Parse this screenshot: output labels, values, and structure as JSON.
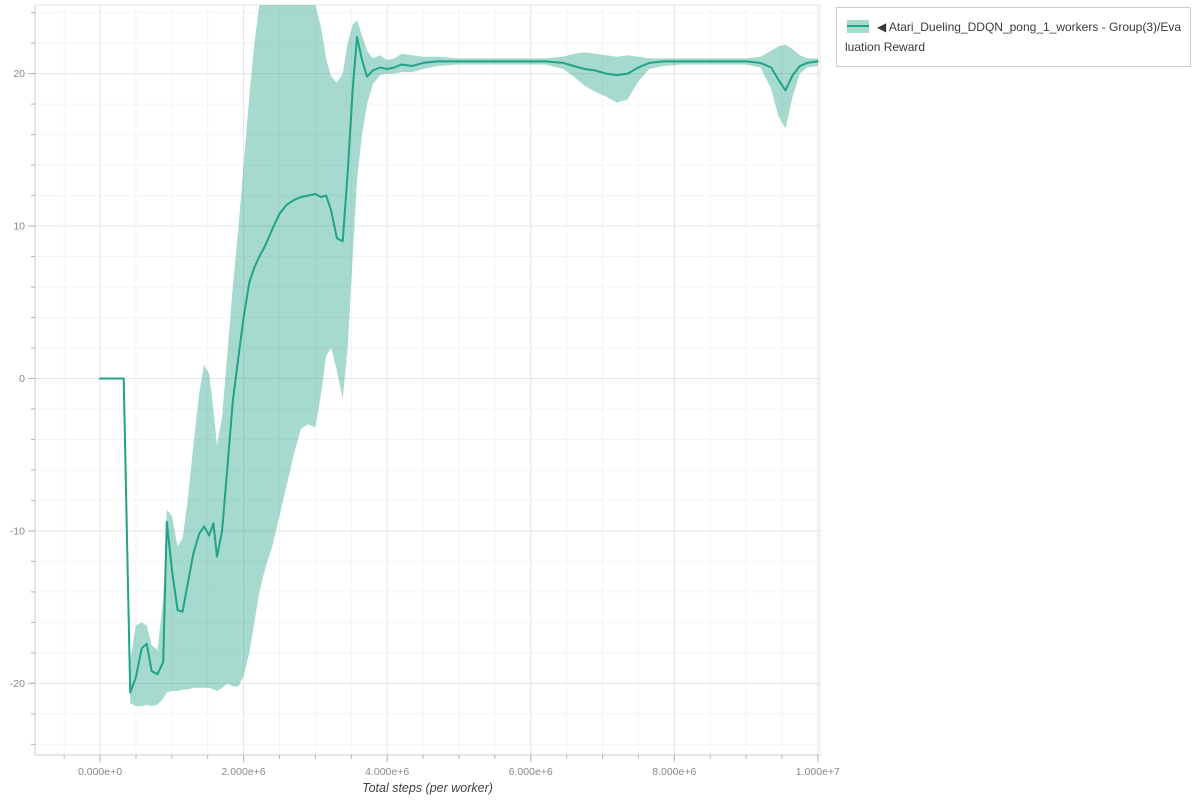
{
  "page": {
    "background": "#ffffff"
  },
  "legend": {
    "position": "top-right",
    "items": [
      {
        "label": "◀ Atari_Dueling_DDQN_pong_1_workers - Group(3)/Evaluation Reward",
        "line_color": "#20a387",
        "band_color": "#a8dbcd"
      }
    ]
  },
  "chart_data": {
    "type": "line",
    "title": "",
    "xlabel": "Total steps (per worker)",
    "ylabel": "",
    "legend_position": "top-right-outside",
    "xlim": [
      -906000,
      10030000
    ],
    "ylim": [
      -24.7,
      24.5
    ],
    "x_ticks": {
      "values": [
        0,
        2000000,
        4000000,
        6000000,
        8000000,
        10000000
      ],
      "labels": [
        "0.000e+0",
        "2.000e+6",
        "4.000e+6",
        "6.000e+6",
        "8.000e+6",
        "1.000e+7"
      ]
    },
    "y_ticks": {
      "values": [
        -20,
        -10,
        0,
        10,
        20
      ],
      "labels": [
        "-20",
        "-10",
        "0",
        "10",
        "20"
      ]
    },
    "grid": {
      "on": true,
      "x_minor_step": 500000,
      "y_minor_step": 2,
      "major_color": "#e5e5e5",
      "minor_color": "#f4f4f4",
      "outline_color": "#e5e5e5",
      "axis_line_color": "#cccccc",
      "tick_color": "#b5b5b5",
      "tick_label_color": "#898989"
    },
    "series": [
      {
        "name": "Atari_Dueling_DDQN_pong_1_workers - Group(3)/Evaluation Reward",
        "color": "#20a387",
        "band_fill": "rgba(32,163,135,0.40)",
        "x": [
          0,
          150000,
          300000,
          330000,
          420000,
          500000,
          580000,
          650000,
          720000,
          800000,
          880000,
          930000,
          1000000,
          1080000,
          1150000,
          1220000,
          1300000,
          1380000,
          1450000,
          1520000,
          1580000,
          1630000,
          1700000,
          1780000,
          1850000,
          1930000,
          2000000,
          2080000,
          2150000,
          2220000,
          2300000,
          2400000,
          2500000,
          2600000,
          2700000,
          2800000,
          2900000,
          3000000,
          3080000,
          3150000,
          3220000,
          3300000,
          3380000,
          3450000,
          3520000,
          3580000,
          3650000,
          3720000,
          3800000,
          3900000,
          4000000,
          4100000,
          4200000,
          4350000,
          4500000,
          4700000,
          5000000,
          5300000,
          5600000,
          5900000,
          6200000,
          6450000,
          6600000,
          6750000,
          6900000,
          7050000,
          7200000,
          7350000,
          7500000,
          7650000,
          7850000,
          8100000,
          8400000,
          8700000,
          9000000,
          9200000,
          9350000,
          9450000,
          9550000,
          9650000,
          9750000,
          9850000,
          10000000
        ],
        "mean": [
          0,
          0,
          0,
          0,
          -20.6,
          -19.6,
          -17.7,
          -17.4,
          -19.2,
          -19.4,
          -18.6,
          -9.4,
          -12.5,
          -15.2,
          -15.3,
          -13.5,
          -11.5,
          -10.2,
          -9.7,
          -10.3,
          -9.5,
          -11.7,
          -10.0,
          -5.5,
          -1.5,
          1.5,
          4.0,
          6.3,
          7.3,
          8.0,
          8.7,
          9.8,
          10.8,
          11.4,
          11.7,
          11.9,
          12.0,
          12.1,
          11.9,
          12.0,
          11.0,
          9.2,
          9.0,
          13.5,
          19.0,
          22.4,
          20.9,
          19.8,
          20.2,
          20.4,
          20.3,
          20.4,
          20.6,
          20.5,
          20.7,
          20.8,
          20.8,
          20.8,
          20.8,
          20.8,
          20.8,
          20.7,
          20.5,
          20.3,
          20.2,
          20.0,
          19.9,
          20.0,
          20.4,
          20.7,
          20.8,
          20.8,
          20.8,
          20.8,
          20.8,
          20.7,
          20.4,
          19.6,
          18.9,
          19.9,
          20.5,
          20.7,
          20.8
        ],
        "lower": [
          0,
          0,
          0,
          0,
          -21.3,
          -21.5,
          -21.5,
          -21.4,
          -21.5,
          -21.4,
          -21.0,
          -20.6,
          -20.5,
          -20.5,
          -20.4,
          -20.4,
          -20.3,
          -20.3,
          -20.3,
          -20.3,
          -20.4,
          -20.5,
          -20.3,
          -20.0,
          -20.2,
          -20.2,
          -19.5,
          -18.0,
          -16.0,
          -14.0,
          -12.5,
          -11.0,
          -9.0,
          -7.0,
          -5.0,
          -3.3,
          -3.0,
          -3.2,
          -1.0,
          1.5,
          2.0,
          0.5,
          -1.3,
          2.0,
          8.0,
          13.0,
          16.0,
          18.0,
          19.3,
          19.9,
          20.0,
          20.0,
          20.1,
          20.1,
          20.3,
          20.5,
          20.6,
          20.6,
          20.6,
          20.6,
          20.6,
          20.3,
          19.8,
          19.2,
          18.8,
          18.5,
          18.1,
          18.3,
          19.5,
          20.3,
          20.5,
          20.6,
          20.6,
          20.6,
          20.6,
          20.4,
          19.0,
          17.2,
          16.4,
          18.5,
          20.0,
          20.4,
          20.5
        ],
        "upper": [
          0,
          0,
          0,
          0,
          -18.5,
          -16.2,
          -16.0,
          -16.2,
          -17.5,
          -17.8,
          -14.5,
          -8.6,
          -9.0,
          -11.0,
          -10.5,
          -8.0,
          -4.5,
          -1.0,
          0.9,
          0.3,
          -2.0,
          -4.4,
          -2.5,
          2.0,
          6.0,
          10.0,
          14.0,
          18.5,
          22.0,
          25.5,
          26,
          26,
          26,
          26,
          26,
          26,
          26,
          25.0,
          23.0,
          21.0,
          19.8,
          19.4,
          20.0,
          22.0,
          23.2,
          23.5,
          22.5,
          21.5,
          21.0,
          21.2,
          20.9,
          21.0,
          21.3,
          21.2,
          21.1,
          21.1,
          21.0,
          21.0,
          21.0,
          21.0,
          21.0,
          21.1,
          21.3,
          21.4,
          21.3,
          21.2,
          21.1,
          21.2,
          21.1,
          21.0,
          21.0,
          21.0,
          21.0,
          21.0,
          21.0,
          21.1,
          21.5,
          21.8,
          21.9,
          21.6,
          21.2,
          21.0,
          21.0
        ]
      }
    ]
  }
}
